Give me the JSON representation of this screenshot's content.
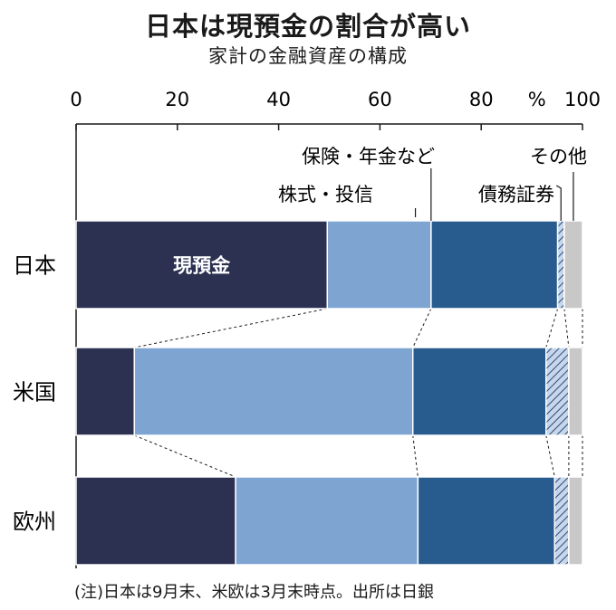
{
  "title": "日本は現預金の割合が高い",
  "subtitle": "家計の金融資産の構成",
  "note": "(注)日本は9月末、米欧は3月末時点。出所は日銀",
  "unit_label": "%",
  "in_bar_label": "現預金",
  "colors": {
    "cash": "#2c3152",
    "stocks": "#7ea4d2",
    "insurance": "#285c8e",
    "bonds_fill": "#c7d6ea",
    "bonds_hatch": "#2b4d7a",
    "other": "#c8c8c8"
  },
  "chart_data": {
    "type": "bar",
    "orientation": "horizontal",
    "stacked": true,
    "xlim": [
      0,
      100
    ],
    "xticks": [
      "0",
      "20",
      "40",
      "60",
      "80",
      "100"
    ],
    "categories": [
      "日本",
      "米国",
      "欧州"
    ],
    "series": [
      {
        "name": "現預金",
        "key": "cash",
        "values": [
          49.6,
          11.5,
          31.5
        ]
      },
      {
        "name": "株式・投信",
        "key": "stocks",
        "values": [
          20.5,
          55.0,
          36.0
        ]
      },
      {
        "name": "保険・年金など",
        "key": "insurance",
        "values": [
          25.0,
          26.3,
          27.0
        ]
      },
      {
        "name": "債務証券",
        "key": "bonds",
        "values": [
          1.3,
          4.5,
          2.8
        ]
      },
      {
        "name": "その他",
        "key": "other",
        "values": [
          3.6,
          2.7,
          2.7
        ]
      }
    ],
    "callouts": [
      "保険・年金など",
      "株式・投信",
      "債務証券",
      "その他"
    ]
  }
}
